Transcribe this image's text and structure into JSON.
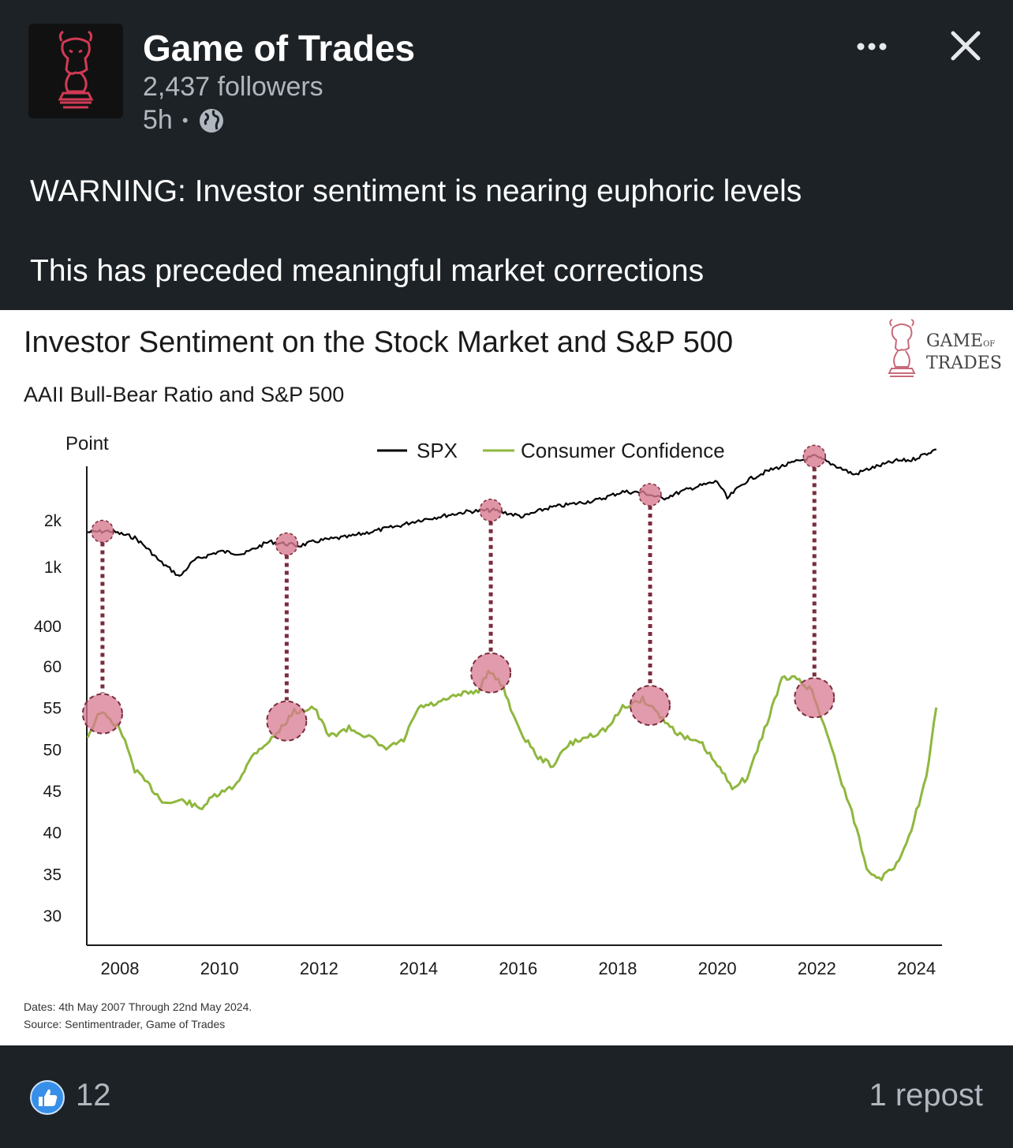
{
  "post": {
    "author": "Game of Trades",
    "followers": "2,437 followers",
    "time": "5h",
    "dot": "•",
    "text_line1": "WARNING: Investor sentiment is nearing euphoric levels",
    "text_line2": "This has preceded meaningful market corrections"
  },
  "brand": {
    "line1": "GAME",
    "of": "OF",
    "line2": "TRADES"
  },
  "footer": {
    "likes": "12",
    "reposts": "1 repost"
  },
  "icons": {
    "more": "more-horizontal-icon",
    "close": "close-icon",
    "globe": "globe-icon",
    "like": "thumbs-up-icon"
  },
  "colors": {
    "background": "#1d2226",
    "spx": "#000000",
    "confidence": "#8fb73e",
    "highlight": "#d77a90"
  },
  "chart_data": {
    "type": "line",
    "title": "Investor Sentiment on the Stock Market and S&P 500",
    "subtitle": "AAII Bull-Bear Ratio and S&P 500",
    "ylabel": "Point",
    "y_ticks_spx": [
      "2k",
      "1k",
      "400"
    ],
    "y_ticks_confidence": [
      "60",
      "55",
      "50",
      "45",
      "40",
      "35",
      "30"
    ],
    "x_ticks": [
      "2008",
      "2010",
      "2012",
      "2014",
      "2016",
      "2018",
      "2020",
      "2022",
      "2024"
    ],
    "legend": [
      "SPX",
      "Consumer Confidence"
    ],
    "legend_position": "top-center",
    "dates_note": "Dates: 4th May 2007 Through 22nd May 2024.",
    "source_note": "Source: Sentimentrader, Game of Trades",
    "series": [
      {
        "name": "SPX",
        "points": [
          [
            2007.35,
            1500
          ],
          [
            2007.8,
            1530
          ],
          [
            2008.3,
            1380
          ],
          [
            2008.8,
            960
          ],
          [
            2009.2,
            760
          ],
          [
            2009.5,
            980
          ],
          [
            2010.0,
            1120
          ],
          [
            2010.5,
            1080
          ],
          [
            2011.0,
            1300
          ],
          [
            2011.6,
            1220
          ],
          [
            2012.0,
            1320
          ],
          [
            2012.6,
            1400
          ],
          [
            2013.0,
            1500
          ],
          [
            2013.6,
            1650
          ],
          [
            2014.0,
            1800
          ],
          [
            2014.6,
            1950
          ],
          [
            2015.0,
            2060
          ],
          [
            2015.5,
            2100
          ],
          [
            2016.1,
            1900
          ],
          [
            2016.6,
            2170
          ],
          [
            2017.0,
            2280
          ],
          [
            2017.6,
            2450
          ],
          [
            2018.1,
            2780
          ],
          [
            2018.5,
            2750
          ],
          [
            2018.9,
            2500
          ],
          [
            2019.5,
            2950
          ],
          [
            2020.0,
            3250
          ],
          [
            2020.2,
            2500
          ],
          [
            2020.6,
            3300
          ],
          [
            2021.0,
            3800
          ],
          [
            2021.5,
            4300
          ],
          [
            2021.95,
            4770
          ],
          [
            2022.4,
            4100
          ],
          [
            2022.75,
            3600
          ],
          [
            2023.0,
            3900
          ],
          [
            2023.6,
            4450
          ],
          [
            2023.9,
            4500
          ],
          [
            2024.4,
            5300
          ]
        ]
      },
      {
        "name": "Consumer Confidence",
        "points": [
          [
            2007.35,
            51.5
          ],
          [
            2007.6,
            54.5
          ],
          [
            2008.0,
            52.5
          ],
          [
            2008.3,
            47.5
          ],
          [
            2008.6,
            45.5
          ],
          [
            2008.9,
            43.5
          ],
          [
            2009.3,
            43.8
          ],
          [
            2009.6,
            42.8
          ],
          [
            2009.9,
            44.3
          ],
          [
            2010.3,
            45.5
          ],
          [
            2010.7,
            49.5
          ],
          [
            2011.1,
            51.5
          ],
          [
            2011.5,
            54.5
          ],
          [
            2011.9,
            55.0
          ],
          [
            2012.2,
            51.5
          ],
          [
            2012.6,
            52.5
          ],
          [
            2013.0,
            51.5
          ],
          [
            2013.3,
            50.0
          ],
          [
            2013.7,
            51.0
          ],
          [
            2014.0,
            55.0
          ],
          [
            2014.4,
            55.5
          ],
          [
            2014.8,
            56.5
          ],
          [
            2015.2,
            57.0
          ],
          [
            2015.4,
            59.5
          ],
          [
            2015.7,
            57.5
          ],
          [
            2016.0,
            52.5
          ],
          [
            2016.4,
            49.0
          ],
          [
            2016.7,
            48.0
          ],
          [
            2017.0,
            50.5
          ],
          [
            2017.4,
            51.5
          ],
          [
            2017.8,
            52.5
          ],
          [
            2018.1,
            55.0
          ],
          [
            2018.5,
            56.0
          ],
          [
            2018.7,
            55.0
          ],
          [
            2019.0,
            53.0
          ],
          [
            2019.3,
            51.5
          ],
          [
            2019.7,
            50.5
          ],
          [
            2020.0,
            48.0
          ],
          [
            2020.3,
            45.5
          ],
          [
            2020.6,
            46.5
          ],
          [
            2020.9,
            51.5
          ],
          [
            2021.3,
            58.5
          ],
          [
            2021.6,
            58.5
          ],
          [
            2021.9,
            57.0
          ],
          [
            2022.2,
            52.0
          ],
          [
            2022.5,
            46.0
          ],
          [
            2022.8,
            40.5
          ],
          [
            2023.0,
            35.5
          ],
          [
            2023.3,
            34.5
          ],
          [
            2023.6,
            36.0
          ],
          [
            2023.9,
            40.5
          ],
          [
            2024.2,
            46.5
          ],
          [
            2024.4,
            55.0
          ]
        ]
      }
    ],
    "highlight_dates": [
      2007.65,
      2011.35,
      2015.45,
      2018.65,
      2021.95
    ]
  }
}
